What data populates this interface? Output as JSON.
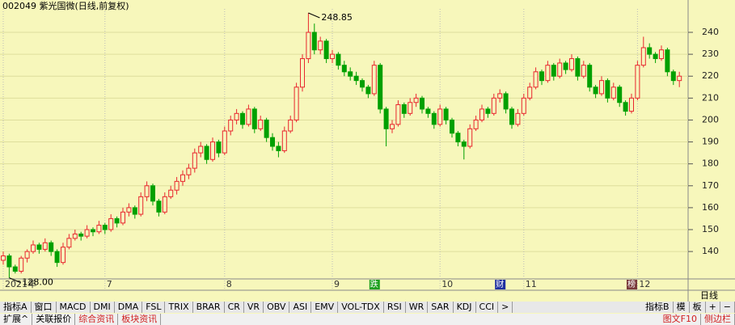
{
  "chart_data": {
    "type": "candlestick",
    "title": "002049 紫光国微(日线,前复权)",
    "up_color": "#e8262e",
    "down_color": "#00a000",
    "ylim": [
      127.5,
      250.7
    ],
    "yticks": [
      140,
      150,
      160,
      170,
      180,
      190,
      200,
      210,
      220,
      230,
      240
    ],
    "grid": true,
    "xticks": [
      {
        "value": 0,
        "label": "2021年"
      },
      {
        "value": 17,
        "label": "7"
      },
      {
        "value": 37,
        "label": "8"
      },
      {
        "value": 55,
        "label": "9"
      },
      {
        "value": 73,
        "label": "10"
      },
      {
        "value": 87,
        "label": "11"
      },
      {
        "value": 106,
        "label": "12"
      }
    ],
    "high_label": "248.85",
    "low_label": "128.00",
    "events": [
      {
        "value": 62,
        "label": "跌"
      },
      {
        "value": 83,
        "label": "财"
      },
      {
        "value": 105,
        "label": "榜"
      }
    ],
    "period": "日线",
    "candles": [
      [
        136,
        140,
        134,
        138
      ],
      [
        138,
        139,
        128,
        133
      ],
      [
        133,
        134,
        130,
        131
      ],
      [
        131,
        138,
        130,
        137
      ],
      [
        137,
        141,
        135,
        140
      ],
      [
        140,
        145,
        139,
        143
      ],
      [
        143,
        144,
        139,
        141
      ],
      [
        141,
        146,
        140,
        144
      ],
      [
        144,
        145,
        138,
        140
      ],
      [
        140,
        141,
        133,
        135
      ],
      [
        135,
        144,
        134,
        142
      ],
      [
        142,
        148,
        141,
        146
      ],
      [
        146,
        150,
        145,
        148
      ],
      [
        148,
        149,
        145,
        147
      ],
      [
        147,
        152,
        146,
        150
      ],
      [
        150,
        151,
        147,
        149
      ],
      [
        149,
        154,
        148,
        152
      ],
      [
        152,
        153,
        148,
        150
      ],
      [
        150,
        157,
        149,
        155
      ],
      [
        155,
        156,
        151,
        153
      ],
      [
        153,
        160,
        152,
        158
      ],
      [
        158,
        162,
        156,
        160
      ],
      [
        160,
        161,
        155,
        157
      ],
      [
        157,
        167,
        156,
        165
      ],
      [
        165,
        172,
        163,
        170
      ],
      [
        170,
        171,
        161,
        163
      ],
      [
        163,
        164,
        156,
        158
      ],
      [
        158,
        167,
        157,
        165
      ],
      [
        165,
        170,
        164,
        168
      ],
      [
        168,
        174,
        166,
        172
      ],
      [
        172,
        177,
        170,
        175
      ],
      [
        175,
        180,
        173,
        178
      ],
      [
        178,
        187,
        176,
        185
      ],
      [
        185,
        190,
        183,
        188
      ],
      [
        188,
        189,
        180,
        182
      ],
      [
        182,
        192,
        181,
        190
      ],
      [
        190,
        191,
        183,
        185
      ],
      [
        185,
        197,
        184,
        195
      ],
      [
        195,
        202,
        193,
        200
      ],
      [
        200,
        205,
        198,
        203
      ],
      [
        203,
        204,
        196,
        198
      ],
      [
        198,
        207,
        197,
        205
      ],
      [
        205,
        206,
        194,
        196
      ],
      [
        196,
        202,
        195,
        200
      ],
      [
        200,
        201,
        190,
        192
      ],
      [
        192,
        194,
        186,
        188
      ],
      [
        188,
        190,
        183,
        186
      ],
      [
        186,
        197,
        185,
        195
      ],
      [
        195,
        202,
        194,
        200
      ],
      [
        200,
        217,
        199,
        215
      ],
      [
        215,
        230,
        213,
        228
      ],
      [
        228,
        248.85,
        226,
        240
      ],
      [
        240,
        244,
        230,
        232
      ],
      [
        232,
        238,
        230,
        236
      ],
      [
        236,
        237,
        226,
        228
      ],
      [
        228,
        232,
        226,
        230
      ],
      [
        230,
        231,
        223,
        225
      ],
      [
        225,
        227,
        220,
        222
      ],
      [
        222,
        224,
        218,
        220
      ],
      [
        220,
        222,
        216,
        218
      ],
      [
        218,
        219,
        213,
        215
      ],
      [
        215,
        216,
        210,
        212
      ],
      [
        212,
        227,
        211,
        225
      ],
      [
        225,
        226,
        203,
        205
      ],
      [
        205,
        206,
        188,
        196
      ],
      [
        196,
        200,
        194,
        198
      ],
      [
        198,
        209,
        197,
        207
      ],
      [
        207,
        208,
        201,
        203
      ],
      [
        203,
        210,
        202,
        208
      ],
      [
        208,
        212,
        206,
        210
      ],
      [
        210,
        211,
        203,
        205
      ],
      [
        205,
        206,
        201,
        203
      ],
      [
        203,
        204,
        196,
        198
      ],
      [
        198,
        207,
        197,
        205
      ],
      [
        205,
        206,
        198,
        200
      ],
      [
        200,
        201,
        192,
        194
      ],
      [
        194,
        195,
        188,
        190
      ],
      [
        190,
        191,
        182,
        188
      ],
      [
        188,
        198,
        187,
        196
      ],
      [
        196,
        202,
        195,
        200
      ],
      [
        200,
        207,
        199,
        205
      ],
      [
        205,
        206,
        201,
        203
      ],
      [
        203,
        212,
        202,
        210
      ],
      [
        210,
        214,
        208,
        212
      ],
      [
        212,
        213,
        203,
        205
      ],
      [
        205,
        206,
        196,
        198
      ],
      [
        198,
        205,
        197,
        203
      ],
      [
        203,
        212,
        202,
        210
      ],
      [
        210,
        217,
        209,
        215
      ],
      [
        215,
        224,
        214,
        222
      ],
      [
        222,
        223,
        216,
        218
      ],
      [
        218,
        227,
        217,
        225
      ],
      [
        225,
        226,
        218,
        220
      ],
      [
        220,
        228,
        219,
        226
      ],
      [
        226,
        227,
        221,
        223
      ],
      [
        223,
        230,
        222,
        228
      ],
      [
        228,
        229,
        218,
        220
      ],
      [
        220,
        227,
        219,
        225
      ],
      [
        225,
        226,
        213,
        215
      ],
      [
        215,
        216,
        210,
        212
      ],
      [
        212,
        220,
        211,
        218
      ],
      [
        218,
        219,
        208,
        210
      ],
      [
        210,
        217,
        209,
        215
      ],
      [
        215,
        216,
        206,
        208
      ],
      [
        208,
        209,
        202,
        204
      ],
      [
        204,
        212,
        203,
        210
      ],
      [
        210,
        227,
        209,
        225
      ],
      [
        225,
        238,
        224,
        233
      ],
      [
        233,
        235,
        228,
        230
      ],
      [
        230,
        231,
        226,
        228
      ],
      [
        228,
        234,
        227,
        232
      ],
      [
        232,
        233,
        220,
        222
      ],
      [
        222,
        223,
        216,
        218
      ],
      [
        218,
        222,
        215,
        220
      ]
    ]
  },
  "toolbar": [
    "指标A",
    "窗口",
    "MACD",
    "DMI",
    "DMA",
    "FSL",
    "TRIX",
    "BRAR",
    "CR",
    "VR",
    "OBV",
    "ASI",
    "EMV",
    "VOL-TDX",
    "RSI",
    "WR",
    "SAR",
    "KDJ",
    "CCI",
    ">"
  ],
  "toolbar_right": [
    "指标B",
    "模",
    "板",
    "+",
    "−"
  ],
  "bottom_tabs": [
    "扩展^",
    "关联报价",
    "综合资讯",
    "板块资讯"
  ],
  "bottom_right": [
    "图文F10",
    "侧边栏"
  ]
}
